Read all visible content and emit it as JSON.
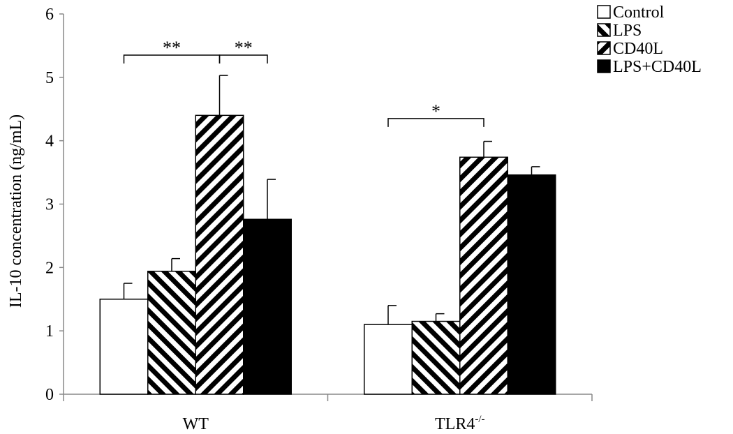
{
  "chart_data": {
    "type": "bar",
    "title": "",
    "xlabel": "",
    "ylabel": "IL-10 concentration (ng/mL)",
    "ylim": [
      0,
      6
    ],
    "yticks": [
      0,
      1,
      2,
      3,
      4,
      5,
      6
    ],
    "categories": [
      "WT",
      "TLR4"
    ],
    "category_superscripts": [
      "",
      "-/-"
    ],
    "grid": false,
    "legend_position": "top-right",
    "series": [
      {
        "name": "Control",
        "pattern": "none",
        "values": [
          1.5,
          1.1
        ],
        "errors": [
          0.25,
          0.3
        ]
      },
      {
        "name": "LPS",
        "pattern": "diag-up",
        "values": [
          1.94,
          1.15
        ],
        "errors": [
          0.2,
          0.12
        ]
      },
      {
        "name": "CD40L",
        "pattern": "diag-down",
        "values": [
          4.4,
          3.74
        ],
        "errors": [
          0.63,
          0.25
        ]
      },
      {
        "name": "LPS+CD40L",
        "pattern": "solid",
        "values": [
          2.76,
          3.46
        ],
        "errors": [
          0.63,
          0.13
        ]
      }
    ],
    "significance": [
      {
        "category": 0,
        "from_series": 0,
        "to_series": 2,
        "bracket_y": 5.35,
        "label": "**"
      },
      {
        "category": 0,
        "from_series": 2,
        "to_series": 3,
        "bracket_y": 5.35,
        "label": "**"
      },
      {
        "category": 1,
        "from_series": 0,
        "to_series": 2,
        "bracket_y": 4.35,
        "label": "*"
      }
    ]
  }
}
